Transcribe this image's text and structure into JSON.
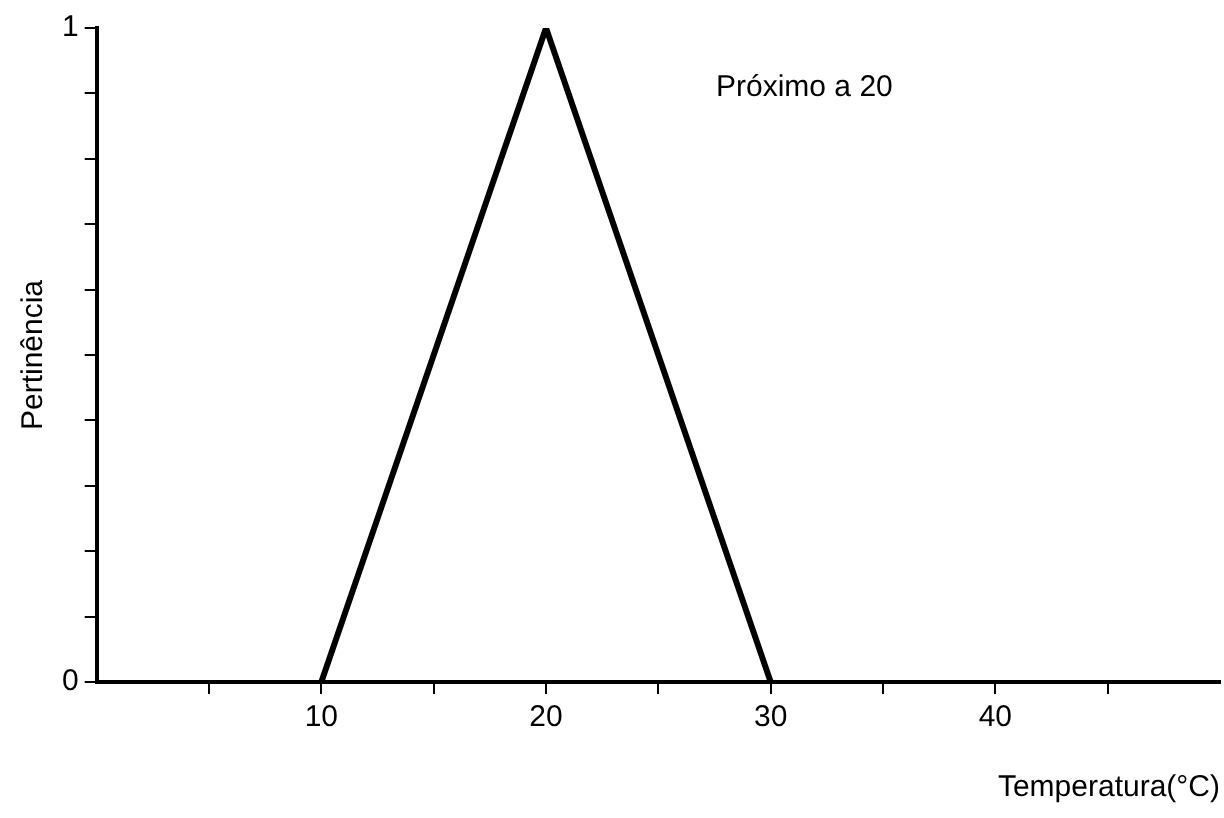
{
  "chart_data": {
    "type": "line",
    "xlabel": "Temperatura(°C)",
    "ylabel": "Pertinência",
    "x": [
      10,
      20,
      30
    ],
    "series": [
      {
        "name": "Próximo a 20",
        "color": "#000000",
        "values": [
          0,
          1,
          0
        ]
      }
    ],
    "xlim": [
      0,
      50
    ],
    "xticks": [
      {
        "value": 5,
        "label": null
      },
      10,
      {
        "value": 15,
        "label": null
      },
      20,
      {
        "value": 25,
        "label": null
      },
      30,
      {
        "value": 35,
        "label": null
      },
      40,
      {
        "value": 45,
        "label": null
      }
    ],
    "ylim": [
      0,
      1
    ],
    "yticks": [
      0,
      {
        "value": 0.1,
        "label": null
      },
      {
        "value": 0.2,
        "label": null
      },
      {
        "value": 0.3,
        "label": null
      },
      {
        "value": 0.4,
        "label": null
      },
      {
        "value": 0.5,
        "label": null
      },
      {
        "value": 0.6,
        "label": null
      },
      {
        "value": 0.7,
        "label": null
      },
      {
        "value": 0.8,
        "label": null
      },
      {
        "value": 0.9,
        "label": null
      },
      1
    ],
    "grid": false,
    "legend": false,
    "marker": "none",
    "line_style": "solid"
  }
}
